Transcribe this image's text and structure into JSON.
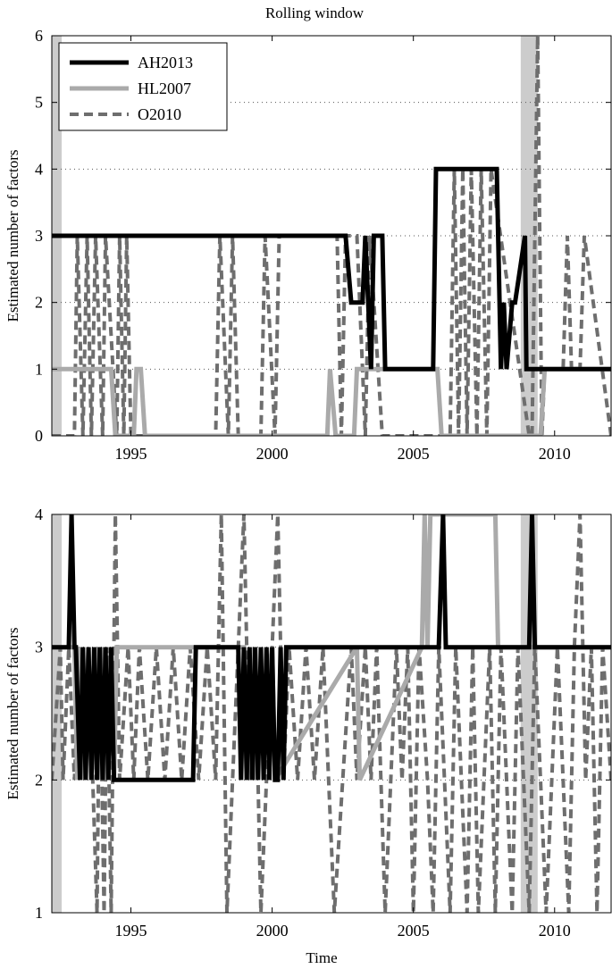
{
  "chart_data": [
    {
      "type": "line",
      "title": "Rolling window",
      "xlabel": "",
      "ylabel": "Estimated number of factors",
      "xlim": [
        1992.2,
        2012.0
      ],
      "ylim": [
        0,
        6
      ],
      "xticks": [
        1995,
        2000,
        2005,
        2010
      ],
      "yticks": [
        0,
        1,
        2,
        3,
        4,
        5,
        6
      ],
      "grid": "horizontal dotted",
      "legend_position": "top-left",
      "shaded_periods": [
        [
          1992.2,
          1992.55
        ],
        [
          2008.8,
          2009.4
        ]
      ],
      "series": [
        {
          "name": "AH2013",
          "color": "#000000",
          "dash": false,
          "width": 5,
          "x": [
            1992.2,
            2002.6,
            2002.8,
            2003.2,
            2003.3,
            2003.5,
            2003.6,
            2003.9,
            2004.0,
            2005.7,
            2005.8,
            2007.95,
            2008.1,
            2008.2,
            2008.3,
            2008.5,
            2008.6,
            2008.95,
            2009.0,
            2009.15,
            2009.2,
            2012.0
          ],
          "values": [
            3,
            3,
            2,
            2,
            3,
            1,
            3,
            3,
            1,
            1,
            4,
            4,
            1,
            2,
            1,
            2,
            2,
            3,
            1,
            1,
            1,
            1
          ]
        },
        {
          "name": "HL2007",
          "color": "#aaaaaa",
          "dash": false,
          "width": 5,
          "x": [
            1992.2,
            1994.3,
            1994.45,
            1995.1,
            1995.2,
            1995.35,
            1995.5,
            2001.95,
            2002.05,
            2002.25,
            2002.9,
            2003.0,
            2005.85,
            2006.0,
            2009.5,
            2009.65,
            2012.0
          ],
          "values": [
            1,
            1,
            0,
            0,
            1,
            1,
            0,
            0,
            1,
            0,
            0,
            1,
            1,
            0,
            0,
            1,
            1
          ]
        },
        {
          "name": "O2010",
          "color": "#6e6e6e",
          "dash": true,
          "width": 4,
          "x": [
            1992.2,
            1993.0,
            1993.1,
            1993.3,
            1993.45,
            1993.6,
            1993.75,
            1994.0,
            1994.1,
            1994.5,
            1994.6,
            1994.75,
            1994.85,
            1995.0,
            1995.1,
            1998.0,
            1998.15,
            1998.45,
            1998.6,
            1998.8,
            1998.95,
            1999.6,
            1999.75,
            2000.1,
            2000.25,
            2002.3,
            2002.45,
            2002.6,
            2003.0,
            2003.3,
            2003.45,
            2003.9,
            2004.05,
            2006.3,
            2006.45,
            2006.6,
            2006.75,
            2006.9,
            2007.05,
            2007.25,
            2007.4,
            2007.6,
            2007.75,
            2009.1,
            2009.2,
            2009.4,
            2009.55,
            2009.65,
            2010.3,
            2010.45,
            2010.6,
            2010.9,
            2011.05,
            2012.0
          ],
          "values": [
            0,
            0,
            3,
            0,
            3,
            0,
            3,
            0,
            3,
            0,
            3,
            0,
            3,
            0,
            0,
            0,
            3,
            0,
            3,
            0,
            0,
            0,
            3,
            0,
            3,
            3,
            0,
            3,
            3,
            0,
            3,
            0,
            0,
            0,
            4,
            0,
            4,
            0,
            4,
            0,
            4,
            0,
            4,
            0,
            0,
            6,
            0,
            1,
            1,
            3,
            1,
            1,
            3,
            0
          ]
        }
      ]
    },
    {
      "type": "line",
      "title": "",
      "xlabel": "Time",
      "ylabel": "Estimated number of factors",
      "xlim": [
        1992.2,
        2012.0
      ],
      "ylim": [
        1,
        4
      ],
      "xticks": [
        1995,
        2000,
        2005,
        2010
      ],
      "yticks": [
        1,
        2,
        3,
        4
      ],
      "grid": "horizontal dotted",
      "shaded_periods": [
        [
          1992.2,
          1992.55
        ],
        [
          2008.8,
          2009.4
        ]
      ],
      "series": [
        {
          "name": "AH2013",
          "color": "#000000",
          "dash": false,
          "width": 5,
          "x": [
            1992.2,
            1992.8,
            1992.9,
            1993.0,
            1993.05,
            1993.2,
            1993.3,
            1993.4,
            1993.5,
            1993.6,
            1993.7,
            1993.8,
            1993.9,
            1994.0,
            1994.1,
            1994.2,
            1994.3,
            1994.4,
            1994.5,
            1997.2,
            1997.3,
            1998.8,
            1998.9,
            1999.0,
            1999.1,
            1999.2,
            1999.3,
            1999.4,
            1999.5,
            1999.6,
            1999.7,
            1999.8,
            1999.9,
            2000.0,
            2000.1,
            2000.2,
            2000.3,
            2000.4,
            2000.5,
            2005.9,
            2006.05,
            2006.15,
            2009.1,
            2009.2,
            2009.3,
            2012.0
          ],
          "values": [
            3,
            3,
            4,
            3,
            3,
            2,
            3,
            2,
            3,
            2,
            3,
            2,
            3,
            2,
            3,
            2,
            3,
            2,
            2,
            2,
            3,
            3,
            2,
            3,
            2,
            3,
            2,
            3,
            2,
            3,
            2,
            3,
            2,
            3,
            2,
            2,
            3,
            2,
            3,
            3,
            4,
            3,
            3,
            4,
            3,
            3
          ]
        },
        {
          "name": "HL2007",
          "color": "#aaaaaa",
          "dash": false,
          "width": 5,
          "x": [
            1992.2,
            1993.0,
            1993.1,
            1993.2,
            1993.3,
            1993.5,
            1993.6,
            1993.8,
            1993.9,
            1994.0,
            1994.1,
            1994.3,
            1994.4,
            1994.5,
            1999.0,
            1999.1,
            1999.3,
            1999.4,
            2000.0,
            2000.1,
            2003.0,
            2003.1,
            2005.3,
            2005.4,
            2005.5,
            2005.6,
            2005.7,
            2007.9,
            2008.0,
            2012.0
          ],
          "values": [
            3,
            3,
            2,
            3,
            2,
            3,
            2,
            3,
            2,
            3,
            2,
            3,
            2,
            3,
            3,
            2,
            3,
            2,
            3,
            2,
            3,
            2,
            3,
            4,
            3,
            4,
            4,
            4,
            3,
            3
          ]
        },
        {
          "name": "O2010",
          "color": "#6e6e6e",
          "dash": true,
          "width": 4,
          "x": [
            1992.2,
            1992.5,
            1992.6,
            1992.8,
            1993.0,
            1993.2,
            1993.35,
            1993.5,
            1993.65,
            1993.8,
            1993.9,
            1994.05,
            1994.15,
            1994.3,
            1994.45,
            1994.6,
            1994.9,
            1995.1,
            1995.3,
            1995.6,
            1995.9,
            1996.2,
            1996.5,
            1996.8,
            1997.1,
            1997.4,
            1997.7,
            1998.0,
            1998.2,
            1998.4,
            1998.6,
            1998.8,
            1999.0,
            1999.2,
            1999.4,
            1999.6,
            1999.8,
            2000.0,
            2000.2,
            2000.4,
            2000.6,
            2000.9,
            2001.2,
            2001.5,
            2001.8,
            2002.0,
            2002.2,
            2002.5,
            2002.8,
            2003.0,
            2003.3,
            2003.5,
            2003.7,
            2004.0,
            2004.2,
            2004.4,
            2004.6,
            2004.8,
            2005.0,
            2005.2,
            2005.5,
            2005.7,
            2005.9,
            2006.1,
            2006.3,
            2006.5,
            2006.7,
            2006.9,
            2007.1,
            2007.3,
            2007.5,
            2007.7,
            2007.9,
            2008.1,
            2008.3,
            2008.5,
            2008.7,
            2008.9,
            2009.1,
            2009.3,
            2009.5,
            2009.7,
            2009.9,
            2010.1,
            2010.3,
            2010.5,
            2010.7,
            2010.9,
            2011.1,
            2011.3,
            2011.5,
            2011.7,
            2012.0
          ],
          "values": [
            2,
            3,
            2,
            3,
            2,
            3,
            2,
            3,
            2,
            1,
            3,
            1,
            3,
            1,
            4,
            2,
            3,
            2,
            3,
            2,
            3,
            2,
            3,
            2,
            3,
            2,
            3,
            2,
            4,
            1,
            2,
            3,
            4,
            2,
            3,
            1,
            2,
            3,
            4,
            2,
            3,
            2,
            3,
            2,
            3,
            2,
            1,
            2,
            3,
            2,
            3,
            2,
            3,
            1,
            2,
            3,
            2,
            3,
            1,
            3,
            2,
            1,
            3,
            2,
            1,
            3,
            2,
            1,
            3,
            1,
            2,
            3,
            1,
            3,
            2,
            1,
            3,
            2,
            1,
            3,
            2,
            1,
            2,
            3,
            2,
            1,
            3,
            4,
            2,
            3,
            1,
            3,
            2
          ]
        }
      ]
    }
  ]
}
